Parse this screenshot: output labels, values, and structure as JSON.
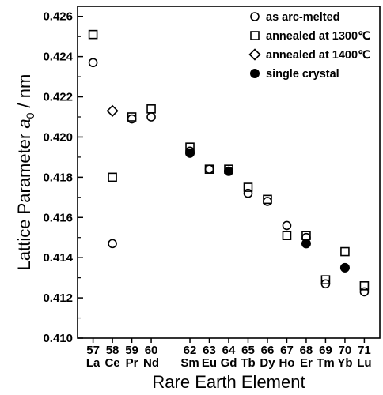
{
  "chart_data": {
    "type": "scatter",
    "xlabel": "Rare Earth Element",
    "ylabel_main": "Lattice Parameter ",
    "ylabel_symbol": "a",
    "ylabel_sub": "0",
    "ylabel_unit": " / nm",
    "ylim": [
      0.41,
      0.4265
    ],
    "xlim": [
      56.2,
      71.8
    ],
    "yticks": [
      0.41,
      0.412,
      0.414,
      0.416,
      0.418,
      0.42,
      0.422,
      0.424,
      0.426
    ],
    "ytick_labels": [
      "0.410",
      "0.412",
      "0.414",
      "0.416",
      "0.418",
      "0.420",
      "0.422",
      "0.424",
      "0.426"
    ],
    "elements": [
      {
        "z": 57,
        "number": "57",
        "symbol": "La"
      },
      {
        "z": 58,
        "number": "58",
        "symbol": "Ce"
      },
      {
        "z": 59,
        "number": "59",
        "symbol": "Pr"
      },
      {
        "z": 60,
        "number": "60",
        "symbol": "Nd"
      },
      {
        "z": 62,
        "number": "62",
        "symbol": "Sm"
      },
      {
        "z": 63,
        "number": "63",
        "symbol": "Eu"
      },
      {
        "z": 64,
        "number": "64",
        "symbol": "Gd"
      },
      {
        "z": 65,
        "number": "65",
        "symbol": "Tb"
      },
      {
        "z": 66,
        "number": "66",
        "symbol": "Dy"
      },
      {
        "z": 67,
        "number": "67",
        "symbol": "Ho"
      },
      {
        "z": 68,
        "number": "68",
        "symbol": "Er"
      },
      {
        "z": 69,
        "number": "69",
        "symbol": "Tm"
      },
      {
        "z": 70,
        "number": "70",
        "symbol": "Yb"
      },
      {
        "z": 71,
        "number": "71",
        "symbol": "Lu"
      }
    ],
    "legend_position": "top-right",
    "series": [
      {
        "name": "as arc-melted",
        "marker": "open-circle",
        "points": [
          {
            "x": 57,
            "y": 0.4237
          },
          {
            "x": 58,
            "y": 0.4147
          },
          {
            "x": 59,
            "y": 0.4209
          },
          {
            "x": 60,
            "y": 0.421
          },
          {
            "x": 62,
            "y": 0.4193
          },
          {
            "x": 63,
            "y": 0.4184
          },
          {
            "x": 64,
            "y": 0.4183
          },
          {
            "x": 65,
            "y": 0.4172
          },
          {
            "x": 66,
            "y": 0.4168
          },
          {
            "x": 67,
            "y": 0.4156
          },
          {
            "x": 68,
            "y": 0.415
          },
          {
            "x": 69,
            "y": 0.4127
          },
          {
            "x": 70,
            "y": 0.4135
          },
          {
            "x": 71,
            "y": 0.4123
          }
        ]
      },
      {
        "name": "annealed at 1300℃",
        "marker": "open-square",
        "points": [
          {
            "x": 57,
            "y": 0.4251
          },
          {
            "x": 58,
            "y": 0.418
          },
          {
            "x": 59,
            "y": 0.421
          },
          {
            "x": 60,
            "y": 0.4214
          },
          {
            "x": 62,
            "y": 0.4195
          },
          {
            "x": 63,
            "y": 0.4184
          },
          {
            "x": 64,
            "y": 0.4184
          },
          {
            "x": 65,
            "y": 0.4175
          },
          {
            "x": 66,
            "y": 0.4169
          },
          {
            "x": 67,
            "y": 0.4151
          },
          {
            "x": 68,
            "y": 0.4151
          },
          {
            "x": 69,
            "y": 0.4129
          },
          {
            "x": 70,
            "y": 0.4143
          },
          {
            "x": 71,
            "y": 0.4126
          }
        ]
      },
      {
        "name": "annealed at 1400℃",
        "marker": "open-diamond",
        "points": [
          {
            "x": 58,
            "y": 0.4213
          }
        ]
      },
      {
        "name": "single crystal",
        "marker": "filled-circle",
        "points": [
          {
            "x": 62,
            "y": 0.4192
          },
          {
            "x": 64,
            "y": 0.4183
          },
          {
            "x": 68,
            "y": 0.4147
          },
          {
            "x": 70,
            "y": 0.4135
          }
        ]
      }
    ],
    "colors": {
      "marker": "#000000",
      "axis": "#000000",
      "background": "#ffffff"
    }
  }
}
